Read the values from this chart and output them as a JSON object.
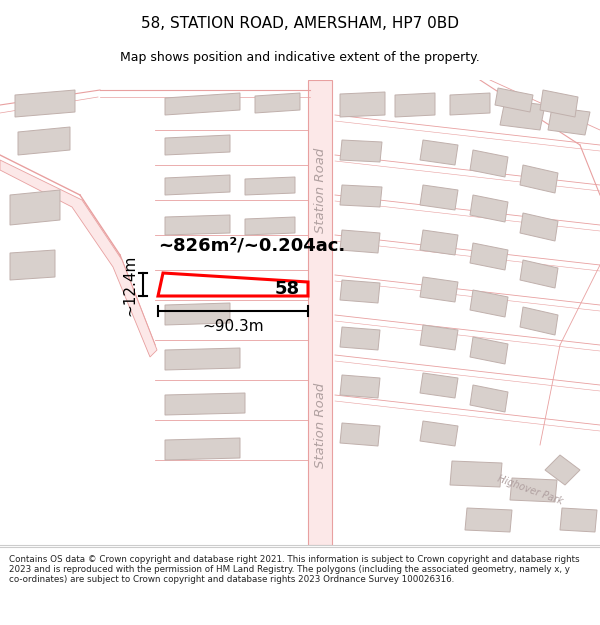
{
  "title": "58, STATION ROAD, AMERSHAM, HP7 0BD",
  "subtitle": "Map shows position and indicative extent of the property.",
  "footer": "Contains OS data © Crown copyright and database right 2021. This information is subject to Crown copyright and database rights 2023 and is reproduced with the permission of HM Land Registry. The polygons (including the associated geometry, namely x, y co-ordinates) are subject to Crown copyright and database rights 2023 Ordnance Survey 100026316.",
  "label_area": "~826m²/~0.204ac.",
  "label_width": "~90.3m",
  "label_height": "~12.4m",
  "label_number": "58",
  "station_road_text": "Station Road",
  "highover_park_text": "Highover Park",
  "road_line_color": "#e8a0a0",
  "road_fill_color": "#fce8e8",
  "building_fill": "#d8d0cc",
  "building_stroke": "#c0b0ac",
  "highlight_color": "#ff0000",
  "bg_color": "#ffffff"
}
